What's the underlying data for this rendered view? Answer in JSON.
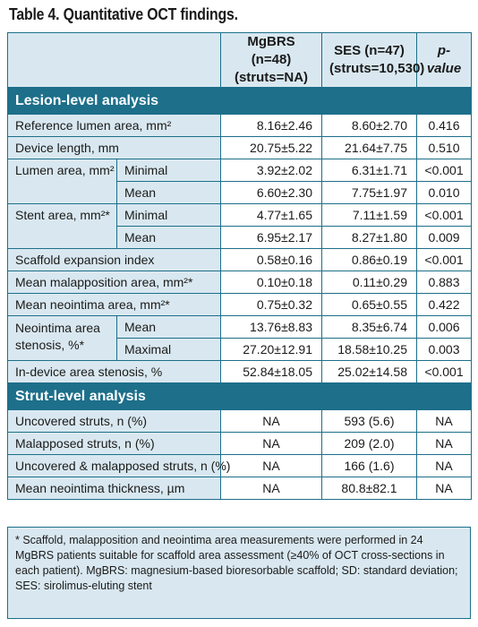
{
  "title": "Table 4. Quantitative OCT findings.",
  "header": {
    "col1": "MgBRS (n=48)",
    "col1b": "(struts=NA)",
    "col2": "SES (n=47)",
    "col2b": "(struts=10,530)",
    "col3": "p-value"
  },
  "sections": {
    "lesion": "Lesion-level analysis",
    "strut": "Strut-level analysis"
  },
  "rows": {
    "ref_lumen": {
      "label": "Reference lumen area, mm²",
      "a": "8.16±2.46",
      "b": "8.60±2.70",
      "p": "0.416"
    },
    "device_len": {
      "label": "Device length, mm",
      "a": "20.75±5.22",
      "b": "21.64±7.75",
      "p": "0.510"
    },
    "lumen_area": {
      "label": "Lumen area, mm²"
    },
    "lumen_min": {
      "sub": "Minimal",
      "a": "3.92±2.02",
      "b": "6.31±1.71",
      "p": "<0.001"
    },
    "lumen_mean": {
      "sub": "Mean",
      "a": "6.60±2.30",
      "b": "7.75±1.97",
      "p": "0.010"
    },
    "stent_area": {
      "label": "Stent area, mm²*"
    },
    "stent_min": {
      "sub": "Minimal",
      "a": "4.77±1.65",
      "b": "7.11±1.59",
      "p": "<0.001"
    },
    "stent_mean": {
      "sub": "Mean",
      "a": "6.95±2.17",
      "b": "8.27±1.80",
      "p": "0.009"
    },
    "scaffold_exp": {
      "label": "Scaffold expansion index",
      "a": "0.58±0.16",
      "b": "0.86±0.19",
      "p": "<0.001"
    },
    "malapp_area": {
      "label": "Mean malapposition area, mm²*",
      "a": "0.10±0.18",
      "b": "0.11±0.29",
      "p": "0.883"
    },
    "neoint_area": {
      "label": "Mean neointima area, mm²*",
      "a": "0.75±0.32",
      "b": "0.65±0.55",
      "p": "0.422"
    },
    "neoint_sten": {
      "label1": "Neointima area",
      "label2": "stenosis, %*"
    },
    "neoint_mean": {
      "sub": "Mean",
      "a": "13.76±8.83",
      "b": "8.35±6.74",
      "p": "0.006"
    },
    "neoint_max": {
      "sub": "Maximal",
      "a": "27.20±12.91",
      "b": "18.58±10.25",
      "p": "0.003"
    },
    "indevice": {
      "label": "In-device area stenosis, %",
      "a": "52.84±18.05",
      "b": "25.02±14.58",
      "p": "<0.001"
    },
    "uncovered": {
      "label": "Uncovered struts, n (%)",
      "a": "NA",
      "b": "593 (5.6)",
      "p": "NA"
    },
    "malapposed": {
      "label": "Malapposed struts, n (%)",
      "a": "NA",
      "b": "209 (2.0)",
      "p": "NA"
    },
    "unc_mal": {
      "label": "Uncovered & malapposed struts, n (%)",
      "a": "NA",
      "b": "166 (1.6)",
      "p": "NA"
    },
    "thickness": {
      "label": "Mean neointima thickness, µm",
      "a": "NA",
      "b": "80.8±82.1",
      "p": "NA"
    }
  },
  "footnote": "* Scaffold, malapposition and neointima area measurements were performed in 24 MgBRS patients suitable for scaffold area assessment (≥40% of OCT cross-sections in each patient). MgBRS: magnesium-based bioresorbable scaffold; SD: standard deviation; SES: sirolimus-eluting stent"
}
